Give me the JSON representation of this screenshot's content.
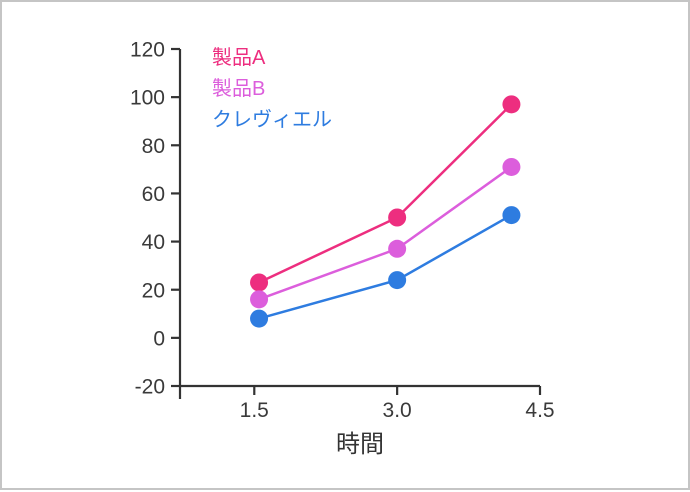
{
  "page": {
    "background": "#ffffff",
    "border_color": "#c5c5c5"
  },
  "chart_data": {
    "type": "line",
    "title": "",
    "xlabel": "時間",
    "ylabel": "",
    "x": [
      1.55,
      3.0,
      4.2
    ],
    "series": [
      {
        "name": "製品A",
        "color": "#ed2e7f",
        "values": [
          23,
          50,
          97
        ]
      },
      {
        "name": "製品B",
        "color": "#dc5edc",
        "values": [
          16,
          37,
          71
        ]
      },
      {
        "name": "クレヴィエル",
        "color": "#2e7ce0",
        "values": [
          8,
          24,
          51
        ]
      }
    ],
    "x_ticks": [
      1.5,
      3.0,
      4.5
    ],
    "x_tick_labels": [
      "1.5",
      "3.0",
      "4.5"
    ],
    "y_ticks": [
      -20,
      0,
      20,
      40,
      60,
      80,
      100,
      120
    ],
    "y_tick_labels": [
      "-20",
      "0",
      "20",
      "40",
      "60",
      "80",
      "100",
      "120"
    ],
    "xlim": [
      0.72,
      4.5
    ],
    "ylim": [
      -20,
      120
    ],
    "grid": false,
    "legend_position": "top-left",
    "axis_color": "#333333",
    "tick_label_color": "#3a3a3a",
    "marker": "circle",
    "marker_radius": 9,
    "line_width": 2.5
  }
}
